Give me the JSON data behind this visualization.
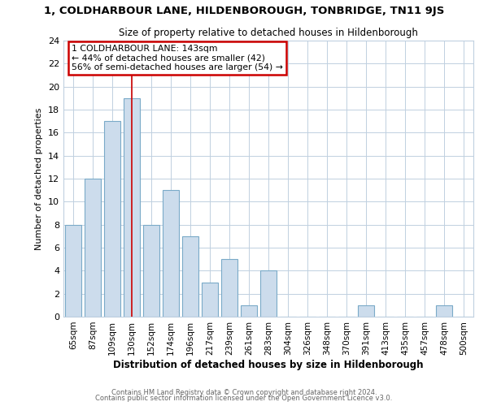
{
  "title": "1, COLDHARBOUR LANE, HILDENBOROUGH, TONBRIDGE, TN11 9JS",
  "subtitle": "Size of property relative to detached houses in Hildenborough",
  "xlabel": "Distribution of detached houses by size in Hildenborough",
  "ylabel": "Number of detached properties",
  "bar_labels": [
    "65sqm",
    "87sqm",
    "109sqm",
    "130sqm",
    "152sqm",
    "174sqm",
    "196sqm",
    "217sqm",
    "239sqm",
    "261sqm",
    "283sqm",
    "304sqm",
    "326sqm",
    "348sqm",
    "370sqm",
    "391sqm",
    "413sqm",
    "435sqm",
    "457sqm",
    "478sqm",
    "500sqm"
  ],
  "bar_values": [
    8,
    12,
    17,
    19,
    8,
    11,
    7,
    3,
    5,
    1,
    4,
    0,
    0,
    0,
    0,
    1,
    0,
    0,
    0,
    1,
    0
  ],
  "bar_color": "#ccdcec",
  "bar_edgecolor": "#7aaac8",
  "highlight_bar_index": 3,
  "vline_color": "#cc0000",
  "annotation_text": "1 COLDHARBOUR LANE: 143sqm\n← 44% of detached houses are smaller (42)\n56% of semi-detached houses are larger (54) →",
  "annotation_box_edgecolor": "#cc0000",
  "annotation_box_facecolor": "#ffffff",
  "ylim": [
    0,
    24
  ],
  "yticks": [
    0,
    2,
    4,
    6,
    8,
    10,
    12,
    14,
    16,
    18,
    20,
    22,
    24
  ],
  "footer_line1": "Contains HM Land Registry data © Crown copyright and database right 2024.",
  "footer_line2": "Contains public sector information licensed under the Open Government Licence v3.0.",
  "bg_color": "#ffffff",
  "grid_color": "#c0d0e0"
}
